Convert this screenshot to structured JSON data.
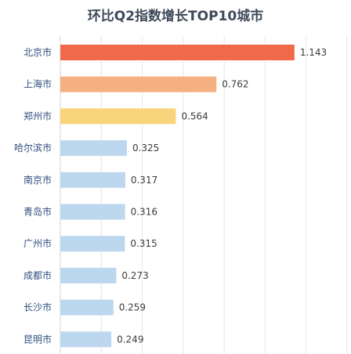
{
  "chart_data": {
    "type": "bar",
    "orientation": "horizontal",
    "title": "环比Q2指数增长TOP10城市",
    "categories": [
      "北京市",
      "上海市",
      "郑州市",
      "哈尔滨市",
      "南京市",
      "青岛市",
      "广州市",
      "成都市",
      "长沙市",
      "昆明市"
    ],
    "values": [
      1.143,
      0.762,
      0.564,
      0.325,
      0.317,
      0.316,
      0.315,
      0.273,
      0.259,
      0.249
    ],
    "value_labels": [
      "1.143",
      "0.762",
      "0.564",
      "0.325",
      "0.317",
      "0.316",
      "0.315",
      "0.273",
      "0.259",
      "0.249"
    ],
    "colors": [
      "#f0694a",
      "#f4b080",
      "#f8d47c",
      "#bcd7ee",
      "#bcd7ee",
      "#bcd7ee",
      "#bcd7ee",
      "#bcd7ee",
      "#bcd7ee",
      "#bcd7ee"
    ],
    "xlim": [
      0,
      1.4
    ],
    "grid": true,
    "xlabel": "",
    "ylabel": ""
  }
}
